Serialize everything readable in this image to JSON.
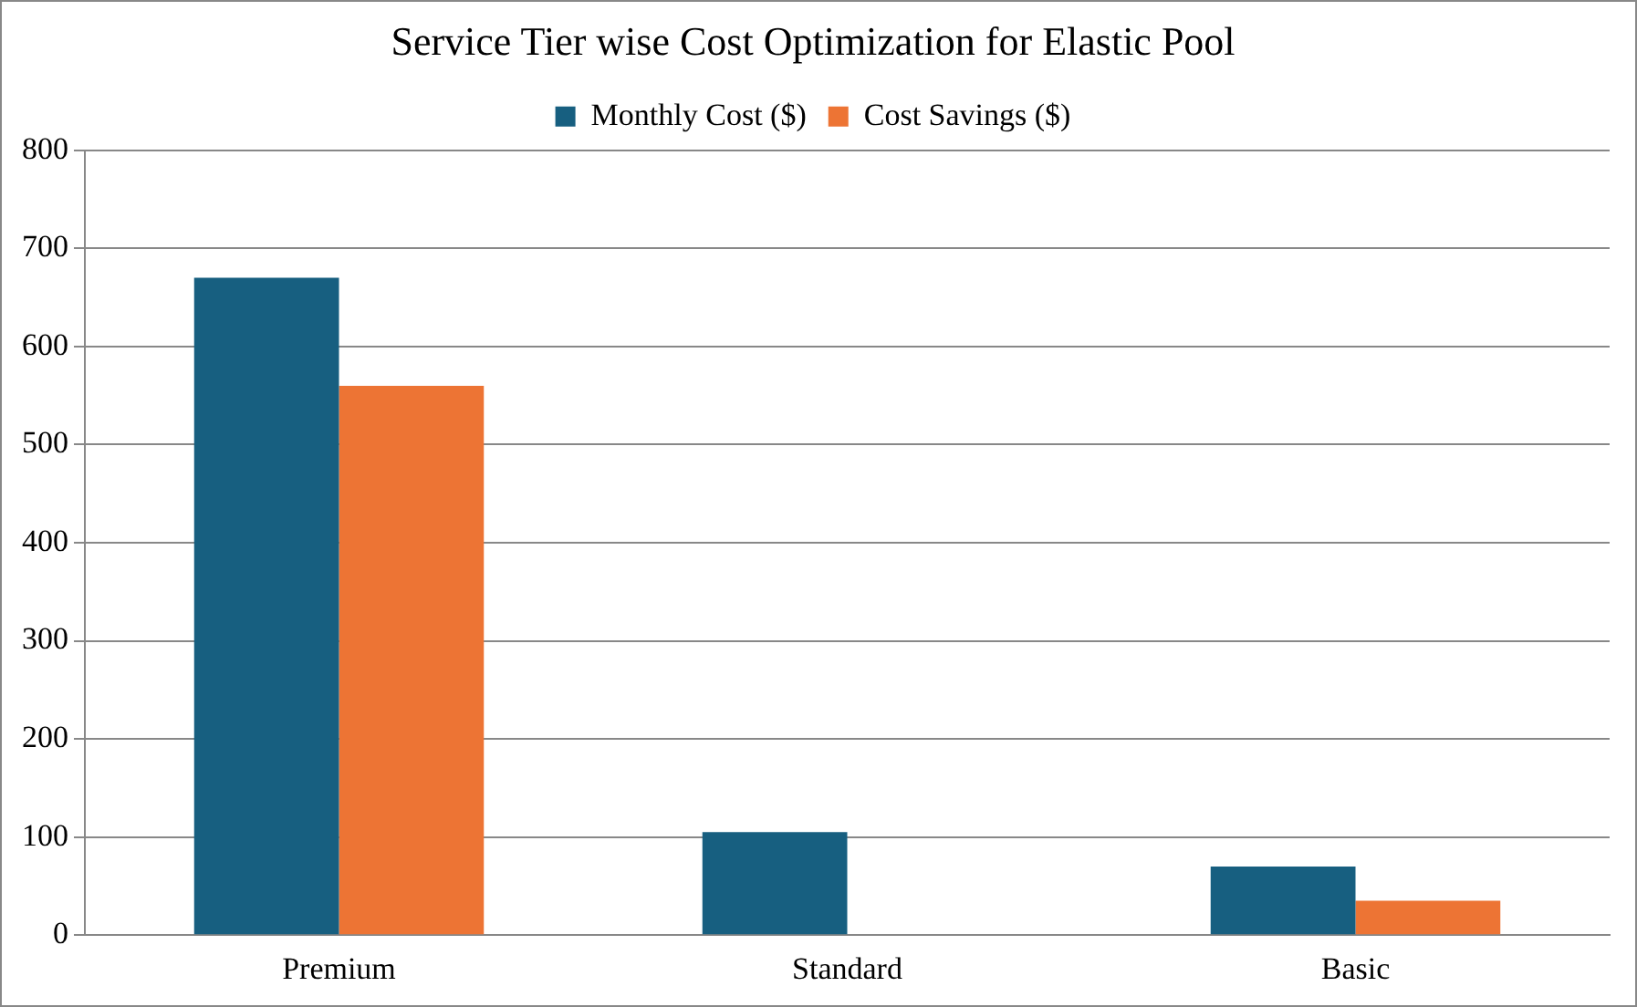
{
  "chart_data": {
    "type": "bar",
    "title": "Service Tier wise Cost Optimization for Elastic Pool",
    "categories": [
      "Premium",
      "Standard",
      "Basic"
    ],
    "series": [
      {
        "name": "Monthly Cost ($)",
        "color": "#175f80",
        "values": [
          670,
          105,
          70
        ]
      },
      {
        "name": "Cost Savings ($)",
        "color": "#ed7434",
        "values": [
          560,
          0,
          35
        ]
      }
    ],
    "ylim": [
      0,
      800
    ],
    "yticks": [
      0,
      100,
      200,
      300,
      400,
      500,
      600,
      700,
      800
    ],
    "grid": "y",
    "legend": "top"
  }
}
